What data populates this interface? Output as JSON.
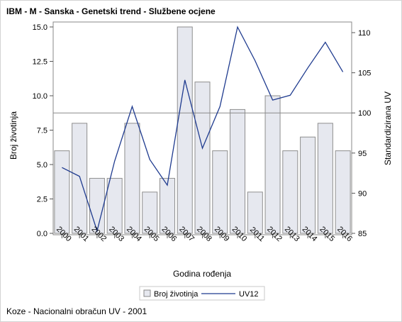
{
  "title": "IBM - M - Sanska - Genetski trend - Službene ocjene",
  "footnote": "Koze - Nacionalni obračun UV - 2001",
  "chart_data": {
    "type": "bar",
    "categories": [
      "2000",
      "2001",
      "2002",
      "2003",
      "2004",
      "2005",
      "2006",
      "2007",
      "2008",
      "2009",
      "2010",
      "2011",
      "2012",
      "2013",
      "2014",
      "2015",
      "2016"
    ],
    "xlabel": "Godina rođenja",
    "ylabel": "Broj životinja",
    "y2label": "Standardizirana UV",
    "ylim": [
      0,
      15
    ],
    "y2lim": [
      85,
      111
    ],
    "yticks": [
      "0.0",
      "2.5",
      "5.0",
      "7.5",
      "10.0",
      "12.5",
      "15.0"
    ],
    "y2ticks": [
      "85",
      "90",
      "95",
      "100",
      "105",
      "110"
    ],
    "reference_line_y2": 100,
    "series": [
      {
        "name": "Broj životinja",
        "type": "bar",
        "axis": "left",
        "color": "#e6e8ef",
        "values": [
          6,
          8,
          4,
          4,
          8,
          3,
          4,
          15,
          11,
          6,
          9,
          3,
          10,
          6,
          7,
          8,
          6
        ]
      },
      {
        "name": "UV12",
        "type": "line",
        "axis": "right",
        "color": "#1f3b8f",
        "values": [
          93.2,
          92.1,
          85.3,
          94.0,
          100.8,
          94.2,
          91.0,
          104.1,
          95.6,
          100.8,
          110.7,
          106.5,
          101.6,
          102.2,
          105.6,
          108.8,
          105.1
        ]
      }
    ],
    "legend": "bottom-center",
    "grid": false
  }
}
